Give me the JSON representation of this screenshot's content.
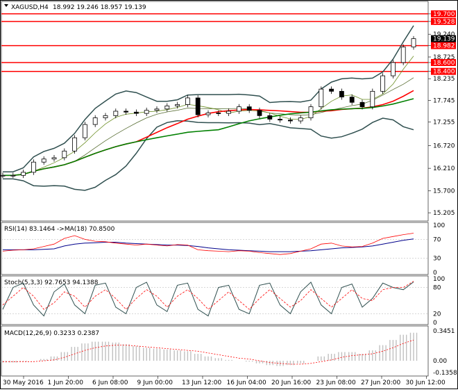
{
  "header": {
    "symbol": "XAGUSD,H4",
    "ohlc": "18.992 19.246 18.957 19.139"
  },
  "price_axis": {
    "labels": [
      "19.700",
      "19.528",
      "19.240",
      "18.982",
      "18.725",
      "18.600",
      "18.400",
      "18.235",
      "17.745",
      "17.255",
      "16.720",
      "16.210",
      "15.700",
      "15.205"
    ],
    "highlighted": [
      "19.700",
      "19.528",
      "18.982",
      "18.600",
      "18.400"
    ],
    "current_price": "19.139"
  },
  "time_axis": [
    "30 May 2016",
    "1 Jun 20:00",
    "6 Jun 08:00",
    "9 Jun 00:00",
    "13 Jun 12:00",
    "16 Jun 04:00",
    "20 Jun 16:00",
    "23 Jun 08:00",
    "27 Jun 20:00",
    "30 Jun 12:00"
  ],
  "indicators": {
    "rsi": {
      "label": "RSI(14) 83.1464 ->MA(18) 70.8500",
      "ticks": [
        "100",
        "70",
        "30",
        "0"
      ]
    },
    "stoch": {
      "label": "Stoch(5,3,3) 92.7653 94.1388",
      "ticks": [
        "100",
        "80",
        "20",
        "0"
      ]
    },
    "macd": {
      "label": "MACD(12,26,9) 0.3233 0.2387",
      "ticks": [
        "0.3451",
        "0.00",
        "-0.1358"
      ]
    }
  },
  "colors": {
    "background": "#ffffff",
    "resistance_line": "#ff0000",
    "label_bg": "#ff0000",
    "bollinger": "#2f4f4f",
    "ma_fast": "#556b2f",
    "ma_slow_red": "#ff0000",
    "ma_slow_green": "#008000",
    "rsi_line": "#ff0000",
    "rsi_ma": "#00008b",
    "stoch_main": "#2f4f4f",
    "stoch_signal": "#ff0000",
    "macd_hist": "#c0c0c0",
    "macd_signal": "#ff0000"
  },
  "chart_data": [
    {
      "type": "candlestick",
      "title": "XAGUSD,H4",
      "ylim": [
        15.05,
        19.95
      ],
      "x": [
        "30 May 2016",
        "1 Jun 20:00",
        "6 Jun 08:00",
        "9 Jun 00:00",
        "13 Jun 12:00",
        "16 Jun 04:00",
        "20 Jun 16:00",
        "23 Jun 08:00",
        "27 Jun 20:00",
        "30 Jun 12:00"
      ],
      "close_series": [
        16.05,
        16.05,
        16.12,
        16.35,
        16.42,
        16.45,
        16.6,
        16.9,
        17.2,
        17.35,
        17.4,
        17.5,
        17.48,
        17.45,
        17.52,
        17.55,
        17.62,
        17.65,
        17.8,
        17.42,
        17.46,
        17.45,
        17.5,
        17.6,
        17.52,
        17.4,
        17.32,
        17.3,
        17.28,
        17.35,
        17.6,
        18.0,
        17.95,
        17.82,
        17.7,
        17.6,
        17.95,
        18.3,
        18.6,
        18.95,
        19.139
      ],
      "horizontal_levels": [
        19.7,
        19.528,
        18.982,
        18.6,
        18.4
      ]
    },
    {
      "type": "line",
      "title": "RSI(14) 83.1464 ->MA(18) 70.8500",
      "ylim": [
        0,
        100
      ],
      "series": [
        {
          "values": [
            45,
            47,
            48,
            50,
            55,
            60,
            72,
            78,
            70,
            66,
            65,
            62,
            60,
            58,
            60,
            58,
            56,
            59,
            58,
            48,
            46,
            45,
            44,
            46,
            45,
            42,
            40,
            38,
            40,
            45,
            50,
            60,
            62,
            56,
            54,
            55,
            62,
            72,
            76,
            80,
            83.1464
          ]
        },
        {
          "values": [
            48,
            48,
            48,
            48,
            49,
            50,
            56,
            60,
            62,
            63,
            64,
            64,
            62,
            61,
            60,
            59,
            58,
            58,
            57,
            55,
            52,
            50,
            48,
            47,
            46,
            45,
            44,
            44,
            44,
            45,
            46,
            48,
            50,
            52,
            53,
            54,
            56,
            60,
            64,
            68,
            70.85
          ]
        }
      ]
    },
    {
      "type": "line",
      "title": "Stoch(5,3,3) 92.7653 94.1388",
      "ylim": [
        0,
        100
      ],
      "series": [
        {
          "values": [
            30,
            80,
            90,
            40,
            15,
            70,
            88,
            40,
            20,
            85,
            90,
            35,
            20,
            80,
            92,
            40,
            25,
            85,
            90,
            30,
            15,
            80,
            85,
            30,
            20,
            85,
            90,
            40,
            20,
            70,
            92,
            40,
            20,
            80,
            88,
            35,
            55,
            90,
            80,
            75,
            92.7653
          ]
        },
        {
          "values": [
            40,
            60,
            80,
            60,
            30,
            45,
            70,
            60,
            35,
            60,
            75,
            55,
            30,
            55,
            75,
            60,
            35,
            60,
            75,
            55,
            30,
            50,
            70,
            50,
            30,
            55,
            75,
            55,
            35,
            50,
            75,
            55,
            35,
            55,
            75,
            55,
            50,
            75,
            80,
            80,
            94.1388
          ]
        }
      ]
    },
    {
      "type": "bar",
      "title": "MACD(12,26,9) 0.3233 0.2387",
      "ylim": [
        -0.1358,
        0.3451
      ],
      "series": [
        {
          "values": [
            -0.02,
            -0.02,
            -0.01,
            0.0,
            0.02,
            0.05,
            0.1,
            0.16,
            0.2,
            0.22,
            0.22,
            0.21,
            0.19,
            0.17,
            0.15,
            0.14,
            0.13,
            0.12,
            0.11,
            0.08,
            0.05,
            0.03,
            0.01,
            0.0,
            -0.01,
            -0.03,
            -0.05,
            -0.06,
            -0.05,
            -0.03,
            0.0,
            0.05,
            0.08,
            0.1,
            0.1,
            0.08,
            0.12,
            0.18,
            0.24,
            0.3,
            0.3233
          ]
        },
        {
          "values": [
            -0.01,
            -0.01,
            -0.01,
            -0.01,
            0.0,
            0.01,
            0.04,
            0.08,
            0.12,
            0.15,
            0.17,
            0.18,
            0.18,
            0.17,
            0.16,
            0.15,
            0.14,
            0.13,
            0.12,
            0.11,
            0.09,
            0.07,
            0.05,
            0.03,
            0.02,
            0.0,
            -0.02,
            -0.03,
            -0.04,
            -0.04,
            -0.03,
            -0.01,
            0.01,
            0.04,
            0.06,
            0.07,
            0.08,
            0.11,
            0.15,
            0.2,
            0.2387
          ]
        }
      ]
    }
  ]
}
